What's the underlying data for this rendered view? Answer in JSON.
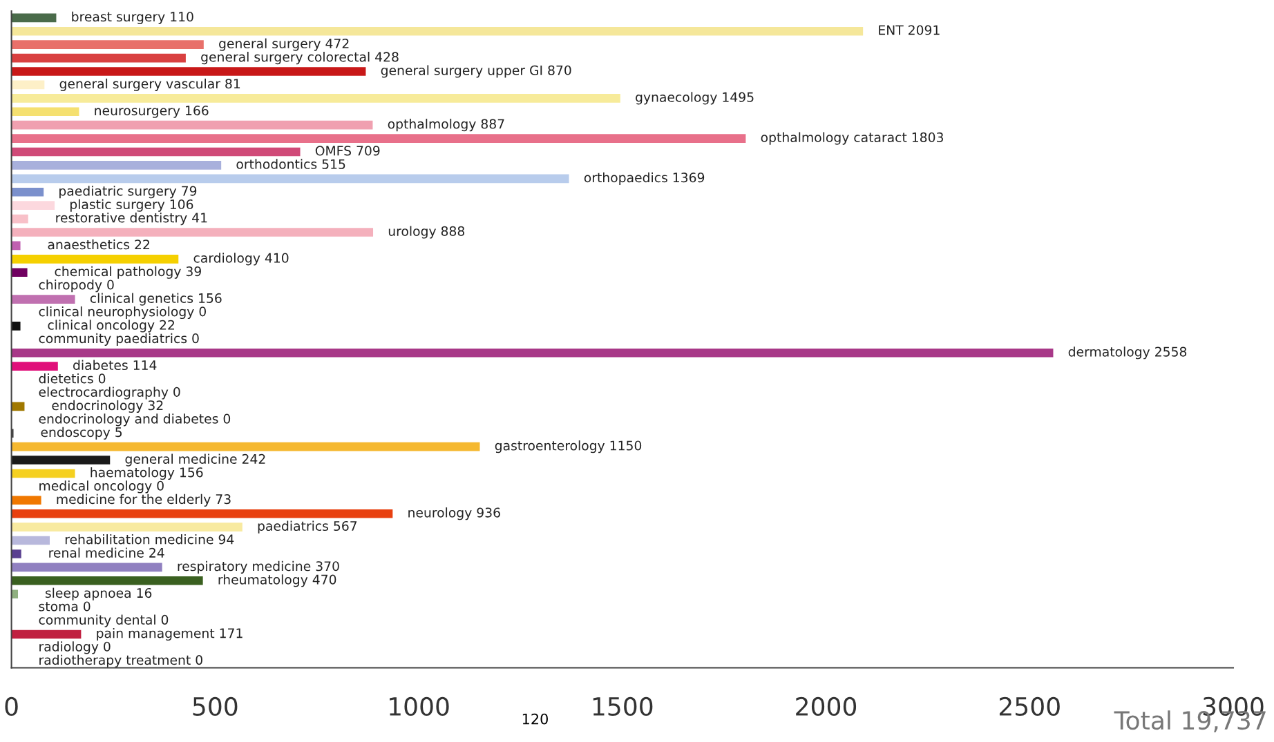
{
  "chart_data": {
    "type": "bar",
    "orientation": "horizontal",
    "categories": [
      "breast surgery 110",
      "ENT 2091",
      "general surgery 472",
      "general surgery colorectal 428",
      "general surgery upper GI 870",
      "general surgery vascular 81",
      "gynaecology 1495",
      "neurosurgery 166",
      "opthalmology 887",
      "opthalmology cataract 1803",
      "OMFS 709",
      "orthodontics 515",
      "orthopaedics 1369",
      "paediatric surgery 79",
      "plastic surgery 106",
      "restorative dentistry 41",
      "urology 888",
      "anaesthetics 22",
      "cardiology 410",
      "chemical pathology 39",
      "chiropody 0",
      "clinical genetics 156",
      "clinical neurophysiology 0",
      "clinical oncology 22",
      "community paediatrics 0",
      "dermatology 2558",
      "diabetes 114",
      "dietetics 0",
      "electrocardiography 0",
      "endocrinology 32",
      "endocrinology and diabetes 0",
      "endoscopy 5",
      "gastroenterology 1150",
      "general medicine 242",
      "haematology 156",
      "medical oncology 0",
      "medicine for the elderly 73",
      "neurology 936",
      "paediatrics 567",
      "rehabilitation medicine 94",
      "renal medicine 24",
      "respiratory medicine 370",
      "rheumatology 470",
      "sleep apnoea 16",
      "stoma 0",
      "community dental 0",
      "pain management 171",
      "radiology 0",
      "radiotherapy treatment 0"
    ],
    "values": [
      110,
      2091,
      472,
      428,
      870,
      81,
      1495,
      166,
      887,
      1803,
      709,
      515,
      1369,
      79,
      106,
      41,
      888,
      22,
      410,
      39,
      0,
      156,
      0,
      22,
      0,
      2558,
      114,
      0,
      0,
      32,
      0,
      5,
      1150,
      242,
      156,
      0,
      73,
      936,
      567,
      94,
      24,
      370,
      470,
      16,
      0,
      0,
      171,
      0,
      0
    ],
    "colors": [
      "#4a6b4a",
      "#f5e79a",
      "#e8706a",
      "#d94040",
      "#c81818",
      "#fdf0c8",
      "#f7eb9a",
      "#f5e070",
      "#f0a0b0",
      "#e8708a",
      "#d04a78",
      "#a8b0dc",
      "#b8ccec",
      "#7b90cc",
      "#fcd8de",
      "#f8c0c8",
      "#f4b0bc",
      "#c060b0",
      "#f5d000",
      "#700060",
      "#444444",
      "#c070b0",
      "#444444",
      "#111111",
      "#444444",
      "#a83888",
      "#e0107a",
      "#444444",
      "#444444",
      "#a07800",
      "#444444",
      "#444444",
      "#f5b830",
      "#1a1a1a",
      "#f5d020",
      "#444444",
      "#f07800",
      "#e84010",
      "#f8eaa0",
      "#b8b8dc",
      "#5a4090",
      "#9080c0",
      "#3a6020",
      "#90b080",
      "#444444",
      "#444444",
      "#c02040",
      "#444444",
      "#444444"
    ],
    "xlim": [
      0,
      3000
    ],
    "xticks": [
      0,
      500,
      1000,
      1500,
      2000,
      2500,
      3000
    ],
    "grid": false,
    "legend": false,
    "annotations": [
      "Total 19,737",
      "120"
    ]
  }
}
